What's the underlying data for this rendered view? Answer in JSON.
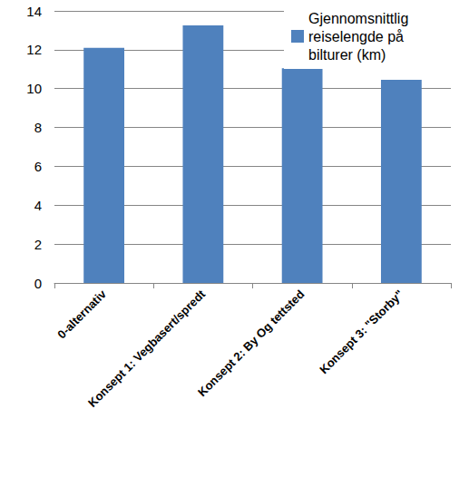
{
  "chart_data": {
    "type": "bar",
    "categories": [
      "0-alternativ",
      "Konsept 1: Vegbasert/spredt",
      "Konsept 2: By Og tettsted",
      "Konsept 3: \"Storby\""
    ],
    "series": [
      {
        "name": "Gjennomsnittlig reiselengde på bilturer (km)",
        "color": "#4f81bd",
        "values": [
          12.1,
          13.25,
          11.05,
          10.45
        ]
      }
    ],
    "ylim": [
      0,
      14
    ],
    "yticks": [
      0,
      2,
      4,
      6,
      8,
      10,
      12,
      14
    ],
    "grid": true,
    "legend": "top-right"
  }
}
